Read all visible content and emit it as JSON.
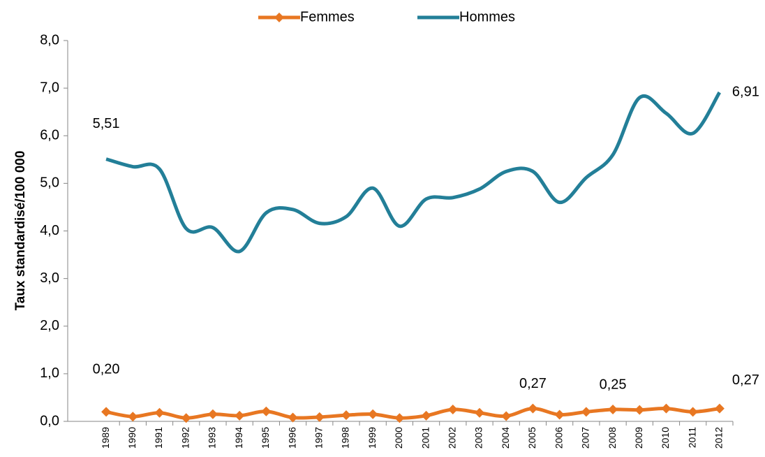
{
  "chart_data": {
    "type": "line",
    "y_label": "Taux standardisé/100 000",
    "categories": [
      "1989",
      "1990",
      "1991",
      "1992",
      "1993",
      "1994",
      "1995",
      "1996",
      "1997",
      "1998",
      "1999",
      "2000",
      "2001",
      "2002",
      "2003",
      "2004",
      "2005",
      "2006",
      "2007",
      "2008",
      "2009",
      "2010",
      "2011",
      "2012"
    ],
    "series": [
      {
        "name": "Femmes",
        "color": "#e87722",
        "marker": "diamond",
        "values": [
          0.2,
          0.1,
          0.18,
          0.07,
          0.15,
          0.12,
          0.21,
          0.08,
          0.09,
          0.13,
          0.15,
          0.07,
          0.12,
          0.25,
          0.18,
          0.11,
          0.27,
          0.14,
          0.2,
          0.25,
          0.24,
          0.27,
          0.2,
          0.27
        ],
        "value_labels": [
          "0,20",
          null,
          null,
          null,
          null,
          null,
          null,
          null,
          null,
          null,
          null,
          null,
          null,
          null,
          null,
          null,
          "0,27",
          null,
          null,
          "0,25",
          null,
          null,
          null,
          "0,27"
        ]
      },
      {
        "name": "Hommes",
        "color": "#237f98",
        "values": [
          5.51,
          5.35,
          5.3,
          4.05,
          4.07,
          3.57,
          4.38,
          4.45,
          4.16,
          4.3,
          4.9,
          4.1,
          4.67,
          4.7,
          4.88,
          5.25,
          5.25,
          4.6,
          5.12,
          5.6,
          6.8,
          6.47,
          6.05,
          6.91
        ],
        "value_labels": [
          "5,51",
          null,
          null,
          null,
          null,
          null,
          null,
          null,
          null,
          null,
          null,
          null,
          null,
          null,
          null,
          null,
          null,
          null,
          null,
          null,
          null,
          null,
          null,
          "6,91"
        ]
      }
    ],
    "ylim": [
      0,
      8
    ],
    "yticks": [
      {
        "value": 0,
        "label": "0,0"
      },
      {
        "value": 1,
        "label": "1,0"
      },
      {
        "value": 2,
        "label": "2,0"
      },
      {
        "value": 3,
        "label": "3,0"
      },
      {
        "value": 4,
        "label": "4,0"
      },
      {
        "value": 5,
        "label": "5,0"
      },
      {
        "value": 6,
        "label": "6,0"
      },
      {
        "value": 7,
        "label": "7,0"
      },
      {
        "value": 8,
        "label": "8,0"
      }
    ],
    "legend": "top",
    "smooth": true
  }
}
